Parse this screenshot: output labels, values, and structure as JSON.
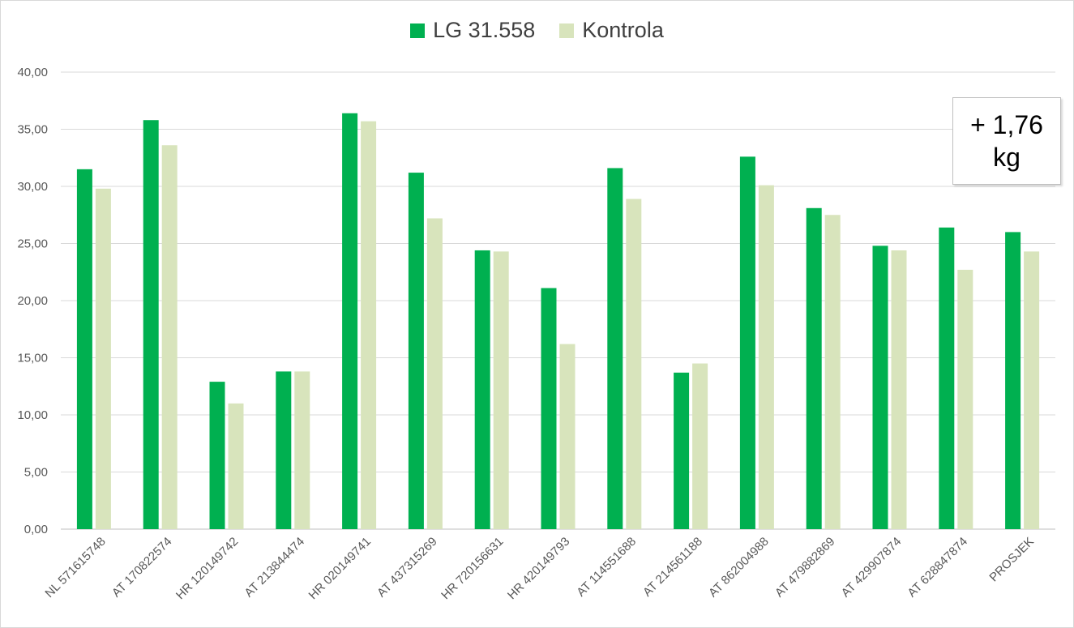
{
  "colors": {
    "series1": "#00b050",
    "series2": "#d8e4bc",
    "grid": "#d9d9d9",
    "axis": "#bfbfbf",
    "text": "#595959"
  },
  "annotation": {
    "line1": "+ 1,76",
    "line2": "kg"
  },
  "chart_data": {
    "type": "bar",
    "title": "",
    "xlabel": "",
    "ylabel": "",
    "ylim": [
      0,
      40
    ],
    "yticks": [
      "0,00",
      "5,00",
      "10,00",
      "15,00",
      "20,00",
      "25,00",
      "30,00",
      "35,00",
      "40,00"
    ],
    "ytick_values": [
      0,
      5,
      10,
      15,
      20,
      25,
      30,
      35,
      40
    ],
    "grid": true,
    "legend_position": "top-center",
    "categories": [
      "NL 571615748",
      "AT 170822574",
      "HR 120149742",
      "AT 213844474",
      "HR 020149741",
      "AT 437315269",
      "HR 720156631",
      "HR 420149793",
      "AT 114551688",
      "AT 214561188",
      "AT 862004988",
      "AT 479882869",
      "AT 429907874",
      "AT 628847874",
      "PROSJEK"
    ],
    "series": [
      {
        "name": "LG 31.558",
        "values": [
          31.5,
          35.8,
          12.9,
          13.8,
          36.4,
          31.2,
          24.4,
          21.1,
          31.6,
          13.7,
          32.6,
          28.1,
          24.8,
          26.4,
          26.0
        ]
      },
      {
        "name": "Kontrola",
        "values": [
          29.8,
          33.6,
          11.0,
          13.8,
          35.7,
          27.2,
          24.3,
          16.2,
          28.9,
          14.5,
          30.1,
          27.5,
          24.4,
          22.7,
          24.3
        ]
      }
    ]
  }
}
